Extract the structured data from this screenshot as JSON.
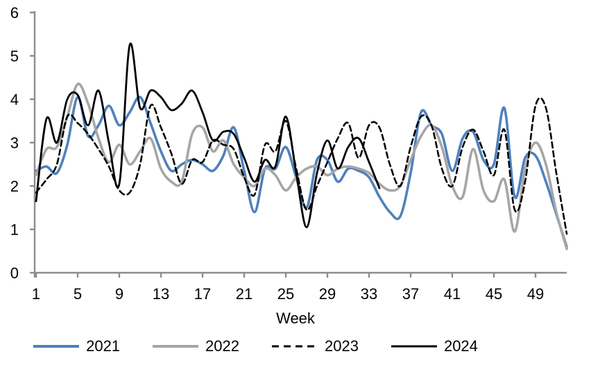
{
  "chart_data": {
    "type": "line",
    "title": "",
    "xlabel": "Week",
    "ylabel": "",
    "xlim": [
      1,
      52
    ],
    "ylim": [
      0,
      6
    ],
    "grid": false,
    "legend_position": "bottom",
    "axis_color": "#8c8c8c",
    "x_ticks": [
      1,
      5,
      9,
      13,
      17,
      21,
      25,
      29,
      33,
      37,
      41,
      45,
      49
    ],
    "y_ticks": [
      0,
      1,
      2,
      3,
      4,
      5,
      6
    ],
    "x": [
      1,
      2,
      3,
      4,
      5,
      6,
      7,
      8,
      9,
      10,
      11,
      12,
      13,
      14,
      15,
      16,
      17,
      18,
      19,
      20,
      21,
      22,
      23,
      24,
      25,
      26,
      27,
      28,
      29,
      30,
      31,
      32,
      33,
      34,
      35,
      36,
      37,
      38,
      39,
      40,
      41,
      42,
      43,
      44,
      45,
      46,
      47,
      48,
      49,
      50,
      51,
      52
    ],
    "series": [
      {
        "name": "2021",
        "color": "#4f81bd",
        "style": "solid",
        "width": 3.6,
        "values": [
          2.35,
          2.45,
          2.3,
          2.95,
          4.05,
          3.15,
          3.4,
          3.85,
          3.4,
          3.7,
          4.05,
          3.45,
          2.8,
          2.35,
          2.5,
          2.6,
          2.5,
          2.35,
          2.7,
          3.35,
          2.35,
          1.4,
          2.4,
          2.4,
          2.9,
          2.2,
          1.5,
          2.6,
          2.6,
          2.1,
          2.4,
          2.35,
          2.2,
          1.75,
          1.4,
          1.3,
          2.3,
          3.7,
          3.4,
          3.2,
          2.35,
          3.1,
          3.25,
          2.6,
          2.5,
          3.8,
          1.75,
          2.65,
          2.7,
          2.1,
          1.35,
          0.6
        ]
      },
      {
        "name": "2022",
        "color": "#a6a6a6",
        "style": "solid",
        "width": 3.6,
        "values": [
          2.25,
          2.85,
          2.9,
          3.6,
          4.35,
          3.9,
          3.1,
          2.55,
          2.95,
          2.5,
          2.8,
          3.1,
          2.4,
          2.1,
          2.1,
          3.2,
          3.35,
          2.8,
          3.05,
          2.5,
          2.2,
          2.0,
          2.4,
          2.25,
          1.9,
          2.2,
          2.4,
          2.45,
          2.25,
          2.4,
          2.45,
          2.4,
          2.3,
          2.05,
          1.9,
          2.0,
          2.6,
          3.15,
          3.4,
          2.9,
          2.0,
          1.75,
          2.85,
          1.9,
          1.65,
          2.15,
          0.95,
          2.4,
          3.0,
          2.5,
          1.4,
          0.55
        ]
      },
      {
        "name": "2023",
        "color": "#000000",
        "style": "dashed",
        "width": 2.6,
        "values": [
          1.85,
          2.15,
          2.5,
          3.6,
          3.45,
          3.2,
          2.85,
          2.45,
          1.9,
          1.85,
          2.5,
          3.85,
          3.35,
          2.75,
          2.05,
          2.6,
          2.55,
          3.05,
          2.95,
          2.85,
          2.2,
          1.8,
          2.95,
          2.8,
          3.5,
          2.4,
          1.45,
          2.0,
          2.55,
          3.1,
          3.45,
          2.65,
          3.4,
          3.35,
          2.5,
          2.0,
          2.9,
          3.6,
          3.4,
          2.4,
          2.0,
          2.9,
          3.3,
          2.8,
          2.25,
          3.3,
          1.45,
          2.1,
          3.85,
          3.8,
          2.3,
          0.9
        ]
      },
      {
        "name": "2024",
        "color": "#000000",
        "style": "solid",
        "width": 2.8,
        "values": [
          1.65,
          3.55,
          3.0,
          4.0,
          4.1,
          3.4,
          4.2,
          3.0,
          2.05,
          5.25,
          3.8,
          4.2,
          4.05,
          3.75,
          3.9,
          4.2,
          3.7,
          3.05,
          3.25,
          3.2,
          2.65,
          2.1,
          2.6,
          2.45,
          3.6,
          2.3,
          1.05,
          2.3,
          3.05,
          2.4,
          2.9,
          3.1,
          2.55,
          1.95
        ]
      }
    ]
  }
}
